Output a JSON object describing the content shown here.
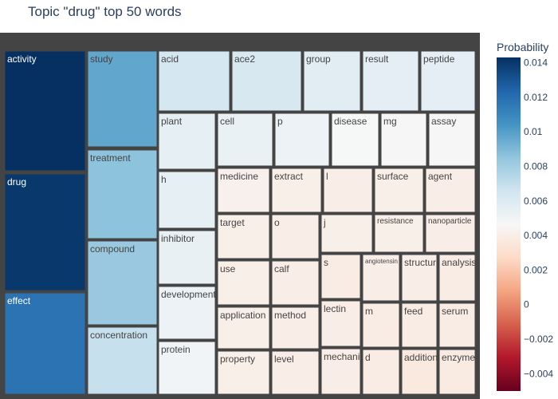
{
  "chart_data": {
    "type": "treemap",
    "title": "Topic \"drug\" top 50 words",
    "root_color": "#444444",
    "colorbar": {
      "title": "Probability",
      "ticks": [
        "0.014",
        "0.012",
        "0.01",
        "0.008",
        "0.006",
        "0.004",
        "0.002",
        "0",
        "−0.002",
        "−0.004"
      ],
      "range": [
        -0.005,
        0.0143
      ],
      "colorscale": [
        "#67001f",
        "#b2182b",
        "#d6604d",
        "#f4a582",
        "#fddbc7",
        "#f7f7f7",
        "#d1e5f0",
        "#92c5de",
        "#4393c3",
        "#2166ac",
        "#053061"
      ]
    },
    "words": [
      {
        "label": "activity",
        "value": 0.0143
      },
      {
        "label": "drug",
        "value": 0.014
      },
      {
        "label": "effect",
        "value": 0.0118
      },
      {
        "label": "study",
        "value": 0.0097
      },
      {
        "label": "treatment",
        "value": 0.0086
      },
      {
        "label": "compound",
        "value": 0.0083
      },
      {
        "label": "concentration",
        "value": 0.0069
      },
      {
        "label": "acid",
        "value": 0.0064
      },
      {
        "label": "ace2",
        "value": 0.0063
      },
      {
        "label": "group",
        "value": 0.0057
      },
      {
        "label": "result",
        "value": 0.0056
      },
      {
        "label": "peptide",
        "value": 0.0056
      },
      {
        "label": "plant",
        "value": 0.0055
      },
      {
        "label": "cell",
        "value": 0.0053
      },
      {
        "label": "p",
        "value": 0.0052
      },
      {
        "label": "disease",
        "value": 0.0047
      },
      {
        "label": "mg",
        "value": 0.0046
      },
      {
        "label": "assay",
        "value": 0.0046
      },
      {
        "label": "h",
        "value": 0.0055
      },
      {
        "label": "medicine",
        "value": 0.0042
      },
      {
        "label": "extract",
        "value": 0.0041
      },
      {
        "label": "l",
        "value": 0.004
      },
      {
        "label": "surface",
        "value": 0.0041
      },
      {
        "label": "agent",
        "value": 0.004
      },
      {
        "label": "inhibitor",
        "value": 0.0054
      },
      {
        "label": "target",
        "value": 0.0041
      },
      {
        "label": "o",
        "value": 0.004
      },
      {
        "label": "j",
        "value": 0.0041
      },
      {
        "label": "resistance",
        "value": 0.0041
      },
      {
        "label": "nanoparticle",
        "value": 0.004
      },
      {
        "label": "development",
        "value": 0.0052
      },
      {
        "label": "use",
        "value": 0.0041
      },
      {
        "label": "calf",
        "value": 0.004
      },
      {
        "label": "s",
        "value": 0.0039
      },
      {
        "label": "angiotensin",
        "value": 0.004
      },
      {
        "label": "structure",
        "value": 0.004
      },
      {
        "label": "analysis",
        "value": 0.0039
      },
      {
        "label": "application",
        "value": 0.0041
      },
      {
        "label": "method",
        "value": 0.004
      },
      {
        "label": "lectin",
        "value": 0.004
      },
      {
        "label": "m",
        "value": 0.0039
      },
      {
        "label": "feed",
        "value": 0.0039
      },
      {
        "label": "serum",
        "value": 0.0039
      },
      {
        "label": "protein",
        "value": 0.005
      },
      {
        "label": "property",
        "value": 0.0041
      },
      {
        "label": "level",
        "value": 0.004
      },
      {
        "label": "mechanism",
        "value": 0.004
      },
      {
        "label": "d",
        "value": 0.0039
      },
      {
        "label": "addition",
        "value": 0.0037
      },
      {
        "label": "enzyme",
        "value": 0.0038
      }
    ]
  }
}
